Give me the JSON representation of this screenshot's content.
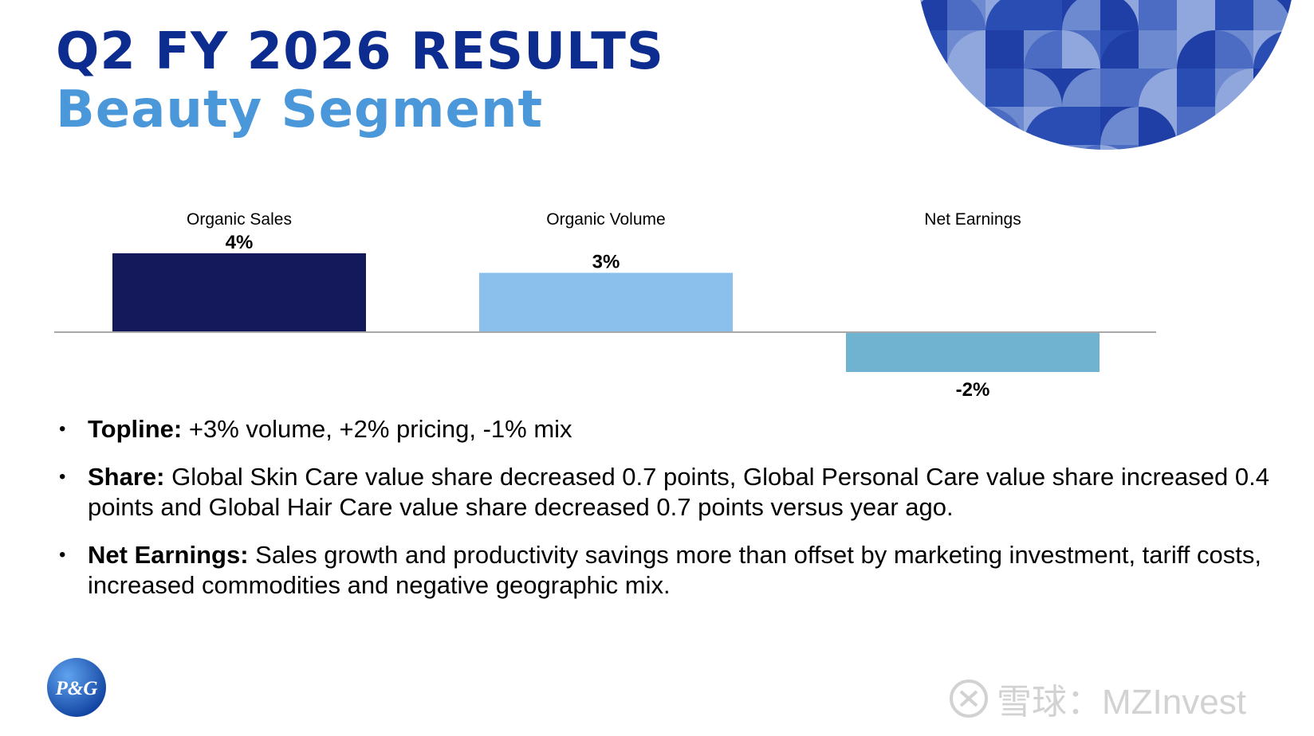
{
  "header": {
    "title": "Q2 FY 2026 RESULTS",
    "subtitle": "Beauty Segment"
  },
  "colors": {
    "title": "#0d2c8f",
    "subtitle": "#4a97da",
    "organic_sales_bar": "#13195a",
    "organic_volume_bar": "#8cc0ec",
    "net_earnings_bar": "#6fb3d1"
  },
  "chart_data": {
    "type": "bar",
    "categories": [
      "Organic Sales",
      "Organic Volume",
      "Net Earnings"
    ],
    "values": [
      4,
      3,
      -2
    ],
    "value_labels": [
      "4%",
      "3%",
      "-2%"
    ],
    "ylim": [
      -2,
      4
    ],
    "grid": false,
    "legend": "none"
  },
  "bullets": [
    {
      "lead": "Topline:",
      "text": " +3% volume, +2% pricing, -1% mix"
    },
    {
      "lead": "Share:",
      "text": " Global Skin Care value share decreased 0.7 points, Global Personal Care value share increased 0.4 points and Global Hair Care value share decreased 0.7 points versus year ago."
    },
    {
      "lead": "Net Earnings:",
      "text": " Sales growth and productivity savings more than offset by marketing investment, tariff costs, increased commodities and negative geographic mix."
    }
  ],
  "logo": {
    "text": "P&G",
    "icon": "pg-logo-icon"
  },
  "watermark": {
    "text": "雪球：MZInvest",
    "icon": "xueqiu-icon"
  }
}
